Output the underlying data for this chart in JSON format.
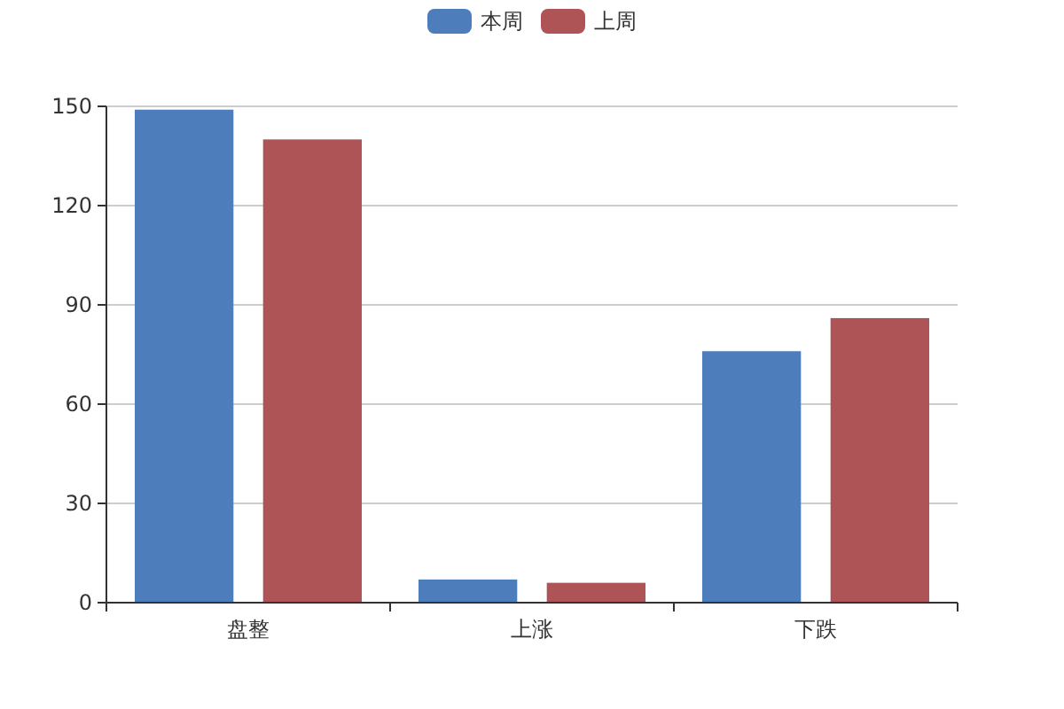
{
  "chart_data": {
    "type": "bar",
    "categories": [
      "盘整",
      "上涨",
      "下跌"
    ],
    "series": [
      {
        "name": "本周",
        "color": "#4d7ebb",
        "values": [
          149,
          7,
          76
        ]
      },
      {
        "name": "上周",
        "color": "#ae5457",
        "values": [
          140,
          6,
          86
        ]
      }
    ],
    "ylim": [
      0,
      150
    ],
    "yticks": [
      0,
      30,
      60,
      90,
      120,
      150
    ],
    "grid": "y",
    "legend": "top"
  }
}
